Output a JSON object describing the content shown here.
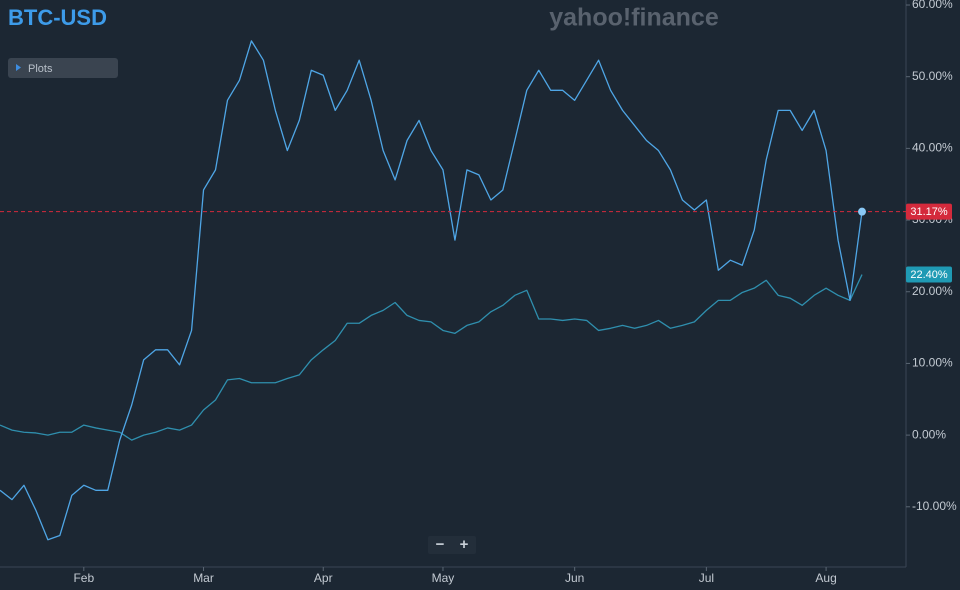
{
  "chart_data": {
    "type": "line",
    "title": "BTC-USD",
    "watermark": "yahoo!finance",
    "plots_button": "Plots",
    "zoom_controls": [
      "−",
      "+"
    ],
    "categories": [
      null,
      null,
      null,
      null,
      null,
      null,
      null,
      "Feb",
      null,
      null,
      null,
      null,
      null,
      null,
      null,
      null,
      null,
      "Mar",
      null,
      null,
      null,
      null,
      null,
      null,
      null,
      null,
      null,
      "Apr",
      null,
      null,
      null,
      null,
      null,
      null,
      null,
      null,
      null,
      "May",
      null,
      null,
      null,
      null,
      null,
      null,
      null,
      null,
      null,
      null,
      "Jun",
      null,
      null,
      null,
      null,
      null,
      null,
      null,
      null,
      null,
      null,
      "Jul",
      null,
      null,
      null,
      null,
      null,
      null,
      null,
      null,
      null,
      "Aug",
      null,
      null,
      null
    ],
    "series": [
      {
        "color": "#4fa6e6",
        "last_value_label": "31.17%",
        "label_color": "#d42a3c",
        "values": [
          -7.7,
          -9,
          -7,
          -10.5,
          -14.6,
          -14,
          -8.4,
          -7,
          -7.7,
          -7.7,
          -0.7,
          4.2,
          10.5,
          11.9,
          11.9,
          9.8,
          14.6,
          34.2,
          37,
          46.7,
          49.5,
          55,
          52.3,
          45.3,
          39.7,
          43.9,
          50.9,
          50.2,
          45.3,
          48.1,
          52.3,
          46.7,
          39.7,
          35.6,
          41.1,
          43.9,
          39.7,
          37,
          27.2,
          37,
          36.3,
          32.8,
          34.2,
          41.1,
          48.1,
          50.9,
          48.1,
          48.1,
          46.7,
          49.5,
          52.3,
          48.1,
          45.3,
          43.2,
          41.1,
          39.7,
          37,
          32.8,
          31.4,
          32.8,
          23,
          24.4,
          23.7,
          28.6,
          38.4,
          45.3,
          45.3,
          42.5,
          45.3,
          39.7,
          27.2,
          18.8,
          31.17
        ]
      },
      {
        "color": "#2f8fae",
        "last_value_label": "22.40%",
        "label_color": "#1f9ab4",
        "values": [
          1.4,
          0.7,
          0.4,
          0.3,
          0,
          0.4,
          0.4,
          1.4,
          1,
          0.7,
          0.4,
          -0.7,
          0,
          0.4,
          1,
          0.7,
          1.4,
          3.5,
          4.9,
          7.7,
          7.9,
          7.3,
          7.3,
          7.3,
          7.9,
          8.4,
          10.5,
          11.9,
          13.2,
          15.6,
          15.6,
          16.7,
          17.4,
          18.5,
          16.7,
          16,
          15.8,
          14.6,
          14.2,
          15.3,
          15.8,
          17.2,
          18.1,
          19.5,
          20.2,
          16.2,
          16.2,
          16,
          16.2,
          16,
          14.6,
          14.9,
          15.3,
          14.9,
          15.3,
          16,
          14.9,
          15.3,
          15.8,
          17.4,
          18.8,
          18.8,
          19.9,
          20.5,
          21.6,
          19.5,
          19.1,
          18.1,
          19.5,
          20.5,
          19.5,
          18.8,
          22.4
        ]
      }
    ],
    "ylim": [
      -18.4,
      60.7
    ],
    "yticks": [
      {
        "value": 60,
        "label": "60.00%"
      },
      {
        "value": 50,
        "label": "50.00%"
      },
      {
        "value": 40,
        "label": "40.00%"
      },
      {
        "value": 30,
        "label": "30.00%"
      },
      {
        "value": 20,
        "label": "20.00%"
      },
      {
        "value": 10,
        "label": "10.00%"
      },
      {
        "value": 0,
        "label": "0.00%"
      },
      {
        "value": -10,
        "label": "-10.00%"
      }
    ],
    "grid": false
  }
}
